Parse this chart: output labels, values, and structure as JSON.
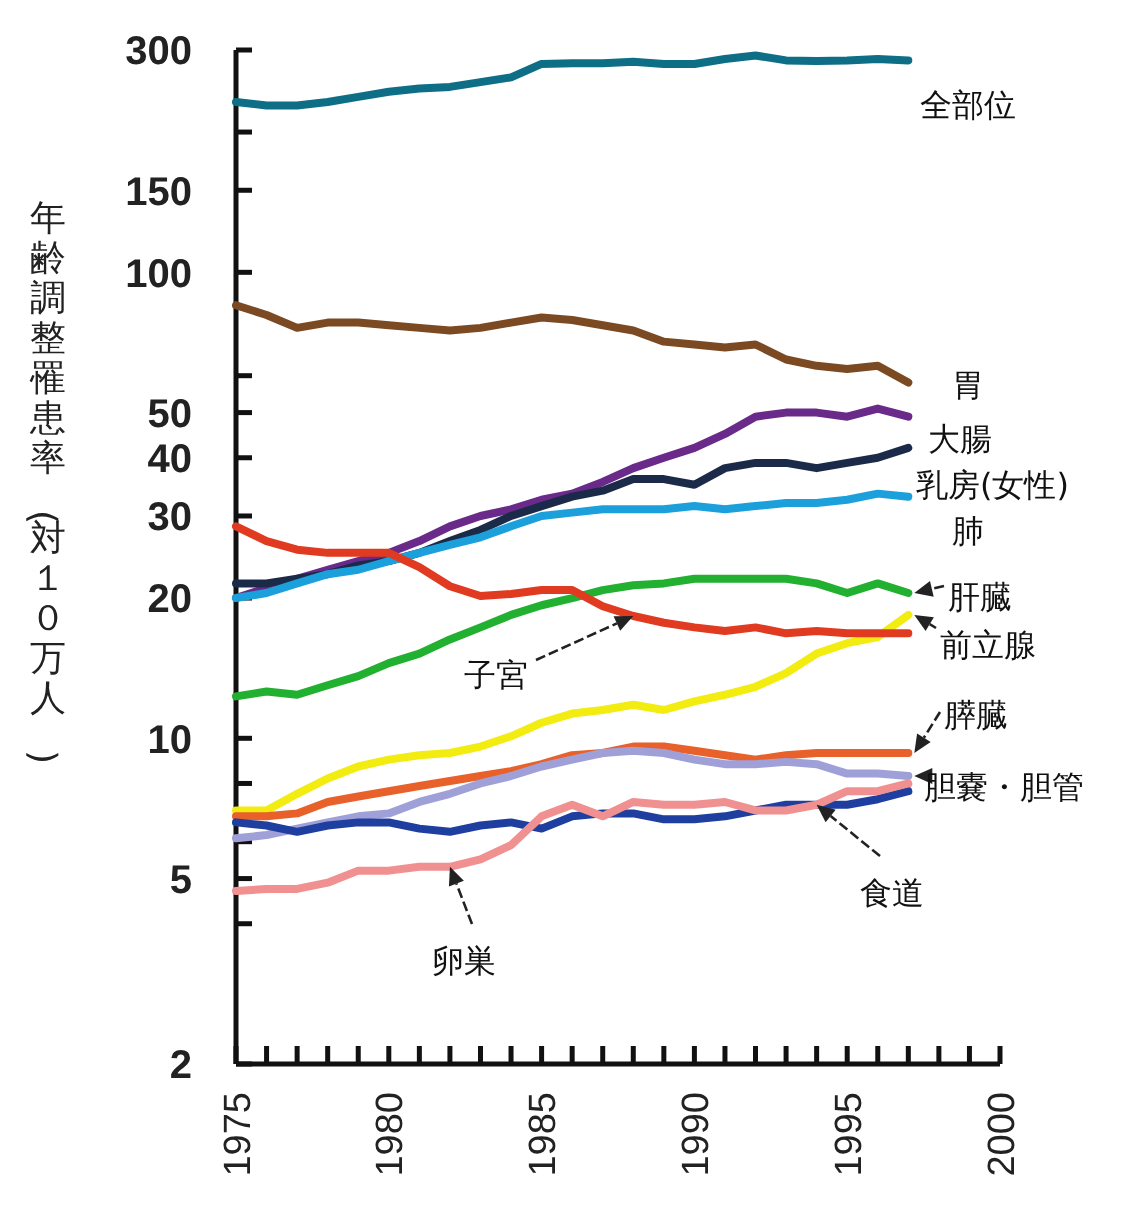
{
  "chart_data": {
    "type": "line",
    "ylabel": "年齢調整罹患率(対１０万人)",
    "log": true,
    "x": [
      1975,
      1976,
      1977,
      1978,
      1979,
      1980,
      1981,
      1982,
      1983,
      1984,
      1985,
      1986,
      1987,
      1988,
      1989,
      1990,
      1991,
      1992,
      1993,
      1994,
      1995,
      1996,
      1997
    ],
    "xlim": [
      1975,
      2000
    ],
    "xticks": [
      1975,
      {
        "value": 1976,
        "label": null
      },
      {
        "value": 1977,
        "label": null
      },
      {
        "value": 1978,
        "label": null
      },
      {
        "value": 1979,
        "label": null
      },
      1980,
      {
        "value": 1981,
        "label": null
      },
      {
        "value": 1982,
        "label": null
      },
      {
        "value": 1983,
        "label": null
      },
      {
        "value": 1984,
        "label": null
      },
      1985,
      {
        "value": 1986,
        "label": null
      },
      {
        "value": 1987,
        "label": null
      },
      {
        "value": 1988,
        "label": null
      },
      {
        "value": 1989,
        "label": null
      },
      1990,
      {
        "value": 1991,
        "label": null
      },
      {
        "value": 1992,
        "label": null
      },
      {
        "value": 1993,
        "label": null
      },
      {
        "value": 1994,
        "label": null
      },
      1995,
      {
        "value": 1996,
        "label": null
      },
      {
        "value": 1997,
        "label": null
      },
      {
        "value": 1998,
        "label": null
      },
      {
        "value": 1999,
        "label": null
      },
      2000
    ],
    "ylim": [
      2,
      300
    ],
    "yticks": [
      300,
      {
        "value": 200,
        "label": null
      },
      150,
      100,
      {
        "value": 60,
        "label": null
      },
      50,
      40,
      30,
      20,
      10,
      {
        "value": 8,
        "label": null
      },
      {
        "value": 6,
        "label": null
      },
      5,
      {
        "value": 4,
        "label": null
      },
      2
    ],
    "series": [
      {
        "name": "全部位",
        "color": "#0e6e86",
        "values": [
          232,
          228,
          228,
          232,
          238,
          244,
          248,
          250,
          256,
          262,
          280,
          281,
          281,
          283,
          280,
          280,
          287,
          292,
          285,
          284,
          285,
          287,
          285
        ]
      },
      {
        "name": "胃",
        "color": "#7b4a22",
        "values": [
          85,
          81,
          76,
          78,
          78,
          77,
          76,
          75,
          76,
          78,
          80,
          79,
          77,
          75,
          71,
          70,
          69,
          70,
          65,
          63,
          62,
          63,
          58
        ]
      },
      {
        "name": "大腸",
        "color": "#6a2a8a",
        "values": [
          20,
          21,
          22,
          23,
          24,
          25,
          26.5,
          28.5,
          30,
          31,
          32.5,
          33.5,
          35.5,
          38,
          40,
          42,
          45,
          49,
          50,
          50,
          49,
          51,
          49
        ]
      },
      {
        "name": "乳房(女性)",
        "color": "#1c2a4a",
        "values": [
          21.5,
          21.5,
          22,
          22.5,
          23.5,
          24,
          25,
          26.5,
          28,
          30,
          31.5,
          33,
          34,
          36,
          36,
          35,
          38,
          39,
          39,
          38,
          39,
          40,
          42
        ]
      },
      {
        "name": "肺",
        "color": "#1ba0dc",
        "values": [
          20,
          20.5,
          21.5,
          22.5,
          23,
          24,
          25,
          26,
          27,
          28.5,
          30,
          30.5,
          31,
          31,
          31,
          31.5,
          31,
          31.5,
          32,
          32,
          32.5,
          33.5,
          33
        ]
      },
      {
        "name": "肝臓",
        "color": "#22b030",
        "values": [
          12.3,
          12.6,
          12.4,
          13,
          13.6,
          14.5,
          15.2,
          16.3,
          17.3,
          18.4,
          19.3,
          20,
          20.8,
          21.3,
          21.5,
          22,
          22,
          22,
          22,
          21.5,
          20.5,
          21.5,
          20.5
        ]
      },
      {
        "name": "前立腺",
        "color": "#f2ec10",
        "values": [
          7,
          7,
          7.6,
          8.2,
          8.7,
          9,
          9.2,
          9.3,
          9.6,
          10.1,
          10.8,
          11.3,
          11.5,
          11.8,
          11.5,
          12,
          12.4,
          12.9,
          13.8,
          15.2,
          16,
          16.5,
          18.4
        ]
      },
      {
        "name": "子宮",
        "color": "#e03a20",
        "values": [
          28.5,
          26.5,
          25.4,
          25,
          25,
          25,
          23.3,
          21.2,
          20.2,
          20.4,
          20.8,
          20.8,
          19.2,
          18.3,
          17.7,
          17.3,
          17,
          17.3,
          16.8,
          17,
          16.8,
          16.8,
          16.8
        ]
      },
      {
        "name": "膵臓",
        "color": "#e8602a",
        "values": [
          6.8,
          6.8,
          6.9,
          7.3,
          7.5,
          7.7,
          7.9,
          8.1,
          8.3,
          8.5,
          8.8,
          9.2,
          9.3,
          9.6,
          9.6,
          9.4,
          9.2,
          9,
          9.2,
          9.3,
          9.3,
          9.3,
          9.3
        ]
      },
      {
        "name": "胆嚢・胆管",
        "color": "#a0a0d8",
        "values": [
          6.1,
          6.2,
          6.4,
          6.6,
          6.8,
          6.9,
          7.3,
          7.6,
          8,
          8.3,
          8.7,
          9,
          9.3,
          9.4,
          9.3,
          9,
          8.8,
          8.8,
          8.9,
          8.8,
          8.4,
          8.4,
          8.3
        ]
      },
      {
        "name": "食道",
        "color": "#1e3ea0",
        "values": [
          6.6,
          6.5,
          6.3,
          6.5,
          6.6,
          6.6,
          6.4,
          6.3,
          6.5,
          6.6,
          6.4,
          6.8,
          6.9,
          6.9,
          6.7,
          6.7,
          6.8,
          7,
          7.2,
          7.2,
          7.2,
          7.4,
          7.7
        ]
      },
      {
        "name": "卵巣",
        "color": "#f09090",
        "values": [
          4.7,
          4.75,
          4.75,
          4.9,
          5.2,
          5.2,
          5.3,
          5.3,
          5.5,
          5.9,
          6.8,
          7.2,
          6.8,
          7.3,
          7.2,
          7.2,
          7.3,
          7,
          7,
          7.2,
          7.7,
          7.7,
          8
        ]
      }
    ]
  }
}
